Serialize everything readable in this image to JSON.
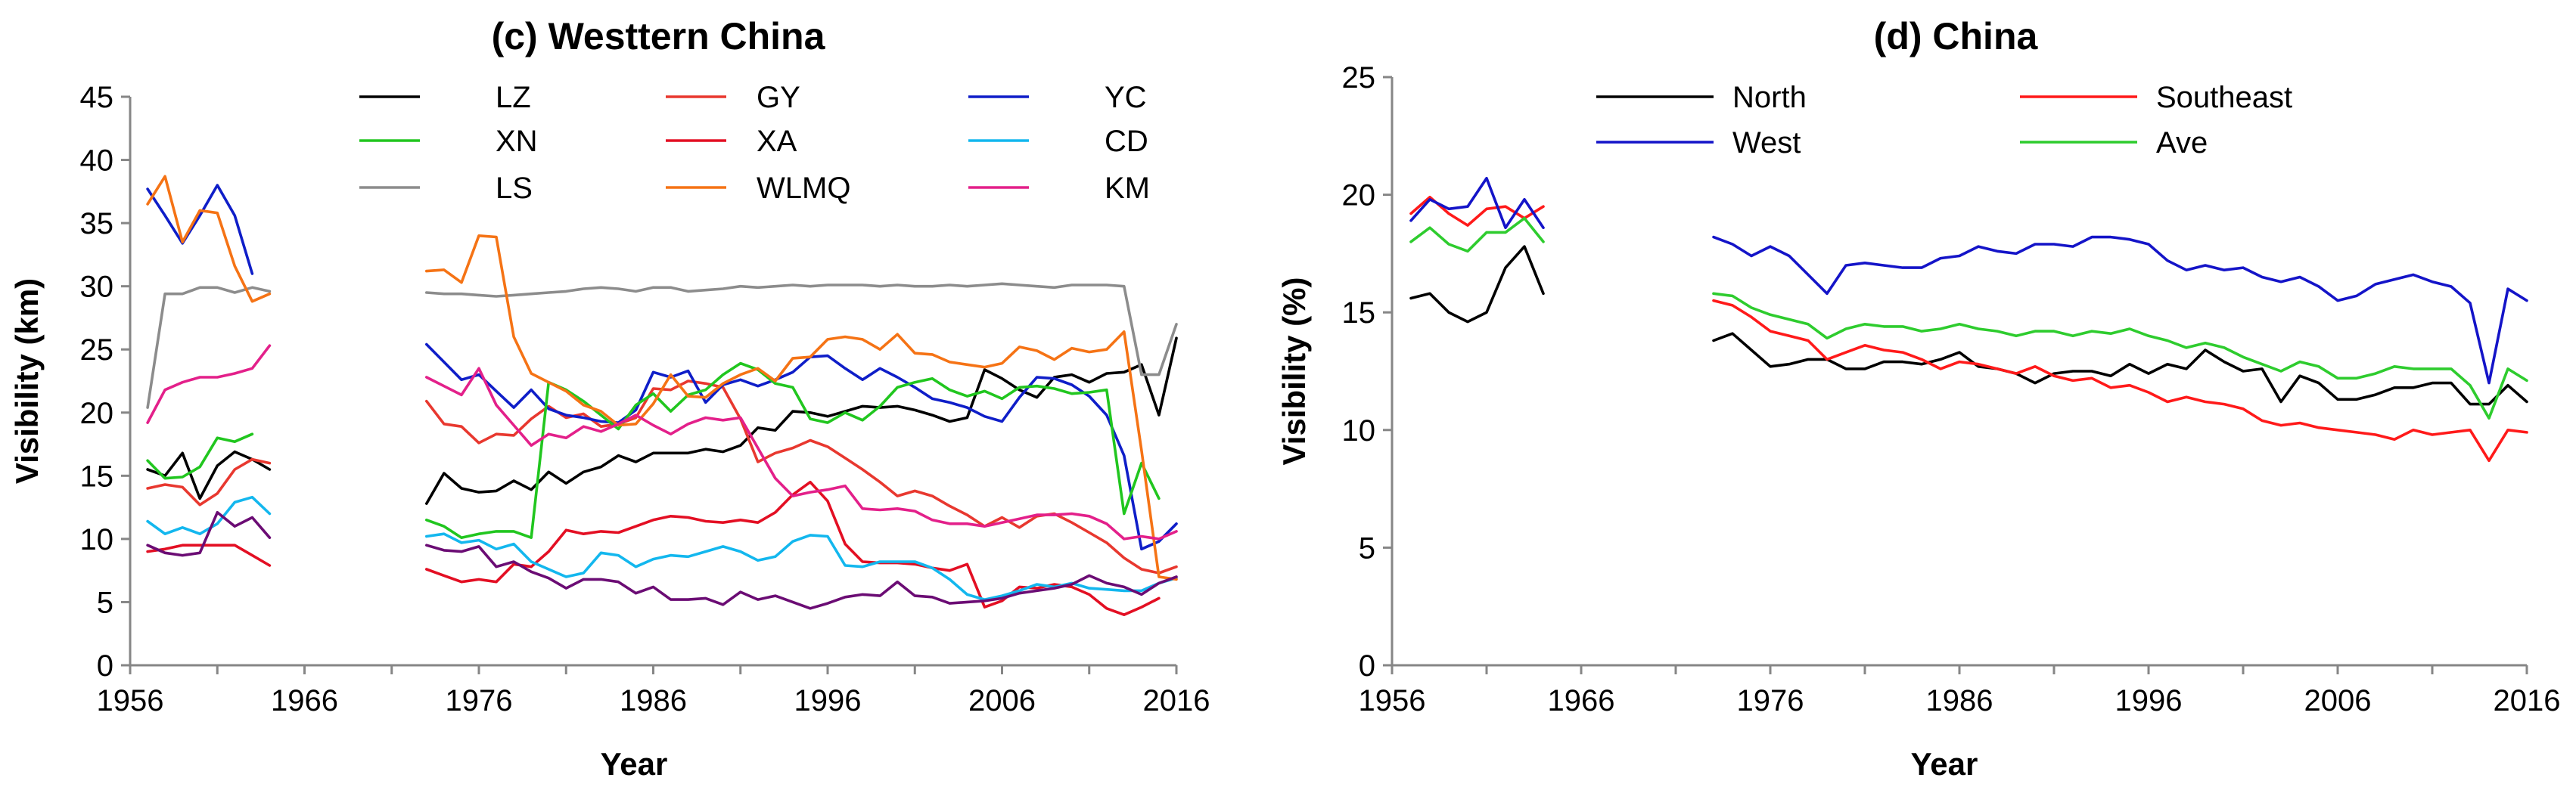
{
  "chart_data": [
    {
      "type": "line",
      "title": "(c) Westtern China",
      "xlabel": "Year",
      "ylabel": "Visibility (km)",
      "xlim": [
        1956,
        2016
      ],
      "ylim": [
        0,
        45
      ],
      "x_ticks": [
        1956,
        1966,
        1976,
        1986,
        1996,
        2006,
        2016
      ],
      "y_ticks": [
        0,
        5,
        10,
        15,
        20,
        25,
        30,
        35,
        40,
        45
      ],
      "legend_location": "top",
      "legend_columns": 3,
      "x_segments": [
        [
          1957,
          1964
        ],
        [
          1973,
          2016
        ]
      ],
      "series": [
        {
          "name": "LZ",
          "color": "#000000",
          "seg1": [
            15.5,
            15.0,
            16.8,
            13.2,
            15.8,
            16.9,
            16.3,
            15.5
          ],
          "seg2": [
            12.8,
            15.2,
            14.0,
            13.7,
            13.8,
            14.6,
            13.9,
            15.3,
            14.4,
            15.3,
            15.7,
            16.6,
            16.1,
            16.8,
            16.8,
            16.8,
            17.1,
            16.9,
            17.4,
            18.8,
            18.6,
            20.1,
            20.0,
            19.7,
            20.1,
            20.5,
            20.4,
            20.5,
            20.2,
            19.8,
            19.3,
            19.6,
            23.4,
            22.7,
            21.8,
            21.2,
            22.8,
            23.0,
            22.4,
            23.1,
            23.2,
            23.8,
            19.8,
            25.9
          ]
        },
        {
          "name": "GY",
          "color": "#e8382f",
          "seg1": [
            14.0,
            14.3,
            14.1,
            12.7,
            13.6,
            15.5,
            16.3,
            16.0
          ],
          "seg2": [
            20.9,
            19.1,
            18.9,
            17.6,
            18.3,
            18.2,
            19.5,
            20.5,
            19.6,
            19.9,
            18.9,
            19.1,
            19.6,
            21.9,
            21.8,
            22.5,
            22.3,
            22.0,
            19.5,
            16.1,
            16.8,
            17.2,
            17.8,
            17.3,
            16.4,
            15.5,
            14.5,
            13.4,
            13.8,
            13.4,
            12.6,
            11.9,
            11.0,
            11.7,
            10.9,
            11.8,
            12.0,
            11.3,
            10.5,
            9.7,
            8.5,
            7.6,
            7.3,
            7.8
          ]
        },
        {
          "name": "YC",
          "color": "#0f1ec8",
          "seg1": [
            37.7,
            35.6,
            33.4,
            35.6,
            38.0,
            35.6,
            31.0,
            null
          ],
          "seg2": [
            25.4,
            24.0,
            22.6,
            23.0,
            21.7,
            20.4,
            21.8,
            20.3,
            19.8,
            19.6,
            19.3,
            19.2,
            20.2,
            23.2,
            22.8,
            23.3,
            20.8,
            22.2,
            22.6,
            22.1,
            22.6,
            23.2,
            24.4,
            24.5,
            23.5,
            22.6,
            23.5,
            22.8,
            22.0,
            21.1,
            20.8,
            20.4,
            19.7,
            19.3,
            21.2,
            22.8,
            22.7,
            22.2,
            21.3,
            19.8,
            16.6,
            9.2,
            9.8,
            11.2
          ]
        },
        {
          "name": "XN",
          "color": "#21c61f",
          "seg1": [
            16.2,
            14.8,
            14.9,
            15.7,
            18.0,
            17.7,
            18.3,
            null
          ],
          "seg2": [
            11.5,
            11.0,
            10.1,
            10.4,
            10.6,
            10.6,
            10.1,
            22.4,
            21.8,
            20.9,
            19.8,
            18.7,
            20.6,
            21.5,
            20.1,
            21.4,
            21.8,
            23.0,
            23.9,
            23.4,
            22.3,
            22.0,
            19.5,
            19.2,
            20.0,
            19.4,
            20.5,
            22.0,
            22.4,
            22.7,
            21.8,
            21.3,
            21.7,
            21.1,
            22.0,
            22.1,
            21.9,
            21.5,
            21.6,
            21.8,
            12.0,
            16.0,
            13.2,
            null
          ]
        },
        {
          "name": "XA",
          "color": "#e30f23",
          "seg1": [
            9.0,
            9.2,
            9.5,
            9.5,
            9.5,
            9.5,
            8.7,
            7.9
          ],
          "seg2": [
            7.6,
            7.1,
            6.6,
            6.8,
            6.6,
            8.0,
            7.8,
            9.0,
            10.7,
            10.4,
            10.6,
            10.5,
            11.0,
            11.5,
            11.8,
            11.7,
            11.4,
            11.3,
            11.5,
            11.3,
            12.1,
            13.5,
            14.5,
            13.0,
            9.6,
            8.2,
            8.1,
            8.1,
            8.0,
            7.7,
            7.5,
            8.0,
            4.6,
            5.1,
            6.2,
            6.1,
            6.4,
            6.2,
            5.6,
            4.5,
            4.0,
            4.6,
            5.3,
            null
          ]
        },
        {
          "name": "CD",
          "color": "#13b7ee",
          "seg1": [
            11.4,
            10.4,
            10.9,
            10.4,
            11.2,
            12.9,
            13.3,
            12.0
          ],
          "seg2": [
            10.2,
            10.4,
            9.7,
            9.9,
            9.2,
            9.6,
            8.2,
            7.6,
            7.0,
            7.3,
            8.9,
            8.7,
            7.8,
            8.4,
            8.7,
            8.6,
            9.0,
            9.4,
            9.0,
            8.3,
            8.6,
            9.8,
            10.3,
            10.2,
            7.9,
            7.8,
            8.2,
            8.2,
            8.2,
            7.7,
            6.8,
            5.6,
            5.2,
            5.5,
            5.9,
            6.4,
            6.2,
            6.5,
            6.1,
            6.0,
            5.9,
            5.9,
            6.5,
            6.9
          ]
        },
        {
          "name": "LS",
          "color": "#8c8c8c",
          "seg1": [
            20.4,
            29.4,
            29.4,
            29.9,
            29.9,
            29.5,
            29.9,
            29.6
          ],
          "seg2": [
            29.5,
            29.4,
            29.4,
            29.3,
            29.2,
            29.3,
            29.4,
            29.5,
            29.6,
            29.8,
            29.9,
            29.8,
            29.6,
            29.9,
            29.9,
            29.6,
            29.7,
            29.8,
            30.0,
            29.9,
            30.0,
            30.1,
            30.0,
            30.1,
            30.1,
            30.1,
            30.0,
            30.1,
            30.0,
            30.0,
            30.1,
            30.0,
            30.1,
            30.2,
            30.1,
            30.0,
            29.9,
            30.1,
            30.1,
            30.1,
            30.0,
            23.0,
            23.0,
            27.0
          ]
        },
        {
          "name": "WLMQ",
          "color": "#f57315",
          "seg1": [
            36.5,
            38.7,
            33.5,
            36.0,
            35.8,
            31.6,
            28.8,
            29.4
          ],
          "seg2": [
            31.2,
            31.3,
            30.3,
            34.0,
            33.9,
            26.0,
            23.1,
            22.4,
            21.7,
            20.6,
            20.1,
            19.0,
            19.1,
            20.7,
            23.0,
            21.3,
            21.2,
            22.3,
            23.0,
            23.5,
            22.5,
            24.3,
            24.4,
            25.8,
            26.0,
            25.8,
            25.0,
            26.2,
            24.7,
            24.6,
            24.0,
            23.8,
            23.6,
            23.9,
            25.2,
            24.9,
            24.2,
            25.1,
            24.8,
            25.0,
            26.4,
            17.0,
            7.0,
            6.8
          ]
        },
        {
          "name": "KM",
          "color": "#e3208a",
          "seg1": [
            19.2,
            21.8,
            22.4,
            22.8,
            22.8,
            23.1,
            23.5,
            25.3
          ],
          "seg2": [
            22.8,
            22.1,
            21.4,
            23.5,
            20.6,
            19.0,
            17.4,
            18.3,
            18.0,
            18.9,
            18.5,
            19.1,
            19.8,
            19.0,
            18.3,
            19.1,
            19.6,
            19.4,
            19.6,
            17.2,
            14.8,
            13.4,
            13.7,
            13.9,
            14.2,
            12.4,
            12.3,
            12.4,
            12.2,
            11.5,
            11.2,
            11.2,
            11.0,
            11.3,
            11.6,
            11.9,
            11.9,
            12.0,
            11.8,
            11.2,
            10.0,
            10.2,
            10.0,
            10.6
          ]
        },
        {
          "name": "",
          "color": "#6b0c74",
          "seg1": [
            9.5,
            8.9,
            8.7,
            8.9,
            12.1,
            11.0,
            11.7,
            10.1
          ],
          "seg2": [
            9.5,
            9.1,
            9.0,
            9.4,
            7.8,
            8.2,
            7.4,
            6.9,
            6.1,
            6.8,
            6.8,
            6.6,
            5.7,
            6.2,
            5.2,
            5.2,
            5.3,
            4.8,
            5.8,
            5.2,
            5.5,
            5.0,
            4.5,
            4.9,
            5.4,
            5.6,
            5.5,
            6.6,
            5.5,
            5.4,
            4.9,
            5.0,
            5.1,
            5.3,
            5.7,
            5.9,
            6.1,
            6.4,
            7.1,
            6.5,
            6.2,
            5.6,
            6.5,
            7.0
          ]
        }
      ]
    },
    {
      "type": "line",
      "title": "(d) China",
      "xlabel": "Year",
      "ylabel": "Visibility (%)",
      "xlim": [
        1956,
        2016
      ],
      "ylim": [
        0,
        25
      ],
      "x_ticks": [
        1956,
        1966,
        1976,
        1986,
        1996,
        2006,
        2016
      ],
      "y_ticks": [
        0,
        5,
        10,
        15,
        20,
        25
      ],
      "legend_location": "top",
      "legend_columns": 2,
      "x_segments": [
        [
          1957,
          1964
        ],
        [
          1973,
          2016
        ]
      ],
      "series": [
        {
          "name": "North",
          "color": "#000000",
          "seg1": [
            15.6,
            15.8,
            15.0,
            14.6,
            15.0,
            16.9,
            17.8,
            15.8
          ],
          "seg2": [
            13.8,
            14.1,
            13.4,
            12.7,
            12.8,
            13.0,
            13.0,
            12.6,
            12.6,
            12.9,
            12.9,
            12.8,
            13.0,
            13.3,
            12.7,
            12.6,
            12.4,
            12.0,
            12.4,
            12.5,
            12.5,
            12.3,
            12.8,
            12.4,
            12.8,
            12.6,
            13.4,
            12.9,
            12.5,
            12.6,
            11.2,
            12.3,
            12.0,
            11.3,
            11.3,
            11.5,
            11.8,
            11.8,
            12.0,
            12.0,
            11.1,
            11.1,
            11.9,
            11.2
          ]
        },
        {
          "name": "Southeast",
          "color": "#ff1a1a",
          "seg1": [
            19.2,
            19.9,
            19.2,
            18.7,
            19.4,
            19.5,
            19.0,
            19.5
          ],
          "seg2": [
            15.5,
            15.3,
            14.8,
            14.2,
            14.0,
            13.8,
            13.0,
            13.3,
            13.6,
            13.4,
            13.3,
            13.0,
            12.6,
            12.9,
            12.8,
            12.6,
            12.4,
            12.7,
            12.3,
            12.1,
            12.2,
            11.8,
            11.9,
            11.6,
            11.2,
            11.4,
            11.2,
            11.1,
            10.9,
            10.4,
            10.2,
            10.3,
            10.1,
            10.0,
            9.9,
            9.8,
            9.6,
            10.0,
            9.8,
            9.9,
            10.0,
            8.7,
            10.0,
            9.9
          ]
        },
        {
          "name": "West",
          "color": "#1414c8",
          "seg1": [
            18.9,
            19.8,
            19.4,
            19.5,
            20.7,
            18.6,
            19.8,
            18.6
          ],
          "seg2": [
            18.2,
            17.9,
            17.4,
            17.8,
            17.4,
            16.6,
            15.8,
            17.0,
            17.1,
            17.0,
            16.9,
            16.9,
            17.3,
            17.4,
            17.8,
            17.6,
            17.5,
            17.9,
            17.9,
            17.8,
            18.2,
            18.2,
            18.1,
            17.9,
            17.2,
            16.8,
            17.0,
            16.8,
            16.9,
            16.5,
            16.3,
            16.5,
            16.1,
            15.5,
            15.7,
            16.2,
            16.4,
            16.6,
            16.3,
            16.1,
            15.4,
            12.0,
            16.0,
            15.5
          ]
        },
        {
          "name": "Ave",
          "color": "#2ecc2e",
          "seg1": [
            18.0,
            18.6,
            17.9,
            17.6,
            18.4,
            18.4,
            19.0,
            18.0
          ],
          "seg2": [
            15.8,
            15.7,
            15.2,
            14.9,
            14.7,
            14.5,
            13.9,
            14.3,
            14.5,
            14.4,
            14.4,
            14.2,
            14.3,
            14.5,
            14.3,
            14.2,
            14.0,
            14.2,
            14.2,
            14.0,
            14.2,
            14.1,
            14.3,
            14.0,
            13.8,
            13.5,
            13.7,
            13.5,
            13.1,
            12.8,
            12.5,
            12.9,
            12.7,
            12.2,
            12.2,
            12.4,
            12.7,
            12.6,
            12.6,
            12.6,
            11.9,
            10.5,
            12.6,
            12.1
          ]
        }
      ]
    }
  ]
}
